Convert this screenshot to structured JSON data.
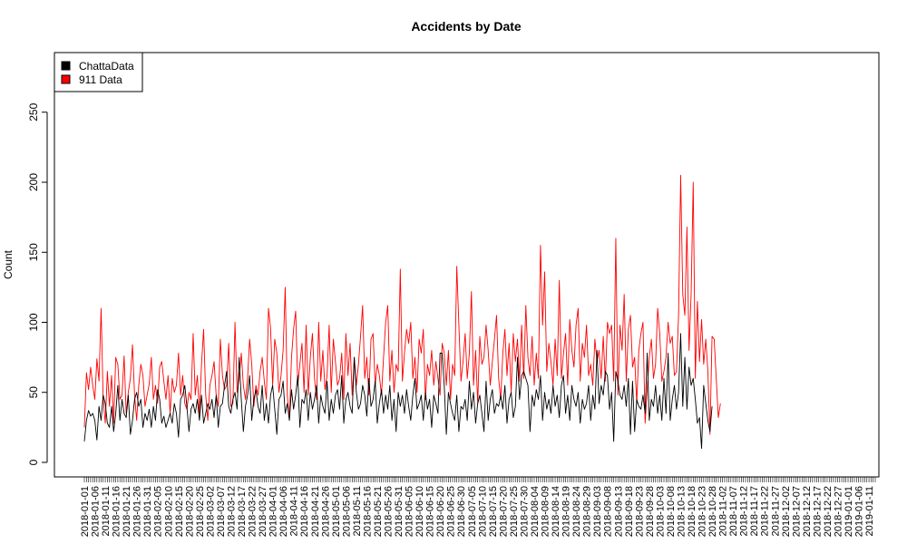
{
  "chart_data": {
    "type": "line",
    "title": "Accidents by Date",
    "xlabel": "",
    "ylabel": "Count",
    "ylim": [
      0,
      290
    ],
    "yticks": [
      0,
      50,
      100,
      150,
      200,
      250
    ],
    "x_start": "2018-01-01",
    "x_end": "2019-01-14",
    "x_label_every_days": 5,
    "x_labels": [
      "2018-01-01",
      "2018-01-06",
      "2018-01-11",
      "2018-01-16",
      "2018-01-21",
      "2018-01-26",
      "2018-01-31",
      "2018-02-05",
      "2018-02-10",
      "2018-02-15",
      "2018-02-20",
      "2018-02-25",
      "2018-03-02",
      "2018-03-07",
      "2018-03-12",
      "2018-03-17",
      "2018-03-22",
      "2018-03-27",
      "2018-04-01",
      "2018-04-06",
      "2018-04-11",
      "2018-04-16",
      "2018-04-21",
      "2018-04-26",
      "2018-05-01",
      "2018-05-06",
      "2018-05-11",
      "2018-05-16",
      "2018-05-21",
      "2018-05-26",
      "2018-05-31",
      "2018-06-05",
      "2018-06-10",
      "2018-06-15",
      "2018-06-20",
      "2018-06-25",
      "2018-06-30",
      "2018-07-05",
      "2018-07-10",
      "2018-07-15",
      "2018-07-20",
      "2018-07-25",
      "2018-07-30",
      "2018-08-04",
      "2018-08-09",
      "2018-08-14",
      "2018-08-19",
      "2018-08-24",
      "2018-08-29",
      "2018-09-03",
      "2018-09-08",
      "2018-09-13",
      "2018-09-18",
      "2018-09-23",
      "2018-09-28",
      "2018-10-03",
      "2018-10-08",
      "2018-10-13",
      "2018-10-18",
      "2018-10-23",
      "2018-10-28",
      "2018-11-02",
      "2018-11-07",
      "2018-11-12",
      "2018-11-17",
      "2018-11-22",
      "2018-11-27",
      "2018-12-02",
      "2018-12-07",
      "2018-12-12",
      "2018-12-17",
      "2018-12-22",
      "2018-12-27",
      "2019-01-01",
      "2019-01-06",
      "2019-01-11"
    ],
    "grid": false,
    "legend": "top-left",
    "series": [
      {
        "name": "ChattaData",
        "color": "#000000",
        "start": "2018-01-01",
        "values": [
          15,
          30,
          37,
          33,
          35,
          30,
          16,
          40,
          30,
          48,
          42,
          28,
          25,
          40,
          22,
          35,
          55,
          30,
          45,
          35,
          32,
          48,
          20,
          30,
          45,
          50,
          40,
          45,
          25,
          35,
          30,
          38,
          25,
          40,
          30,
          52,
          45,
          28,
          33,
          25,
          30,
          35,
          28,
          42,
          35,
          18,
          45,
          48,
          55,
          40,
          22,
          38,
          42,
          35,
          45,
          30,
          48,
          28,
          35,
          42,
          38,
          45,
          32,
          48,
          25,
          40,
          42,
          55,
          65,
          40,
          35,
          45,
          50,
          38,
          75,
          45,
          22,
          40,
          48,
          62,
          30,
          45,
          52,
          40,
          35,
          55,
          30,
          42,
          28,
          48,
          55,
          38,
          20,
          45,
          48,
          58,
          35,
          42,
          30,
          52,
          38,
          48,
          62,
          25,
          45,
          42,
          52,
          30,
          50,
          38,
          45,
          55,
          28,
          48,
          40,
          35,
          58,
          30,
          45,
          35,
          48,
          52,
          38,
          62,
          28,
          45,
          50,
          40,
          35,
          75,
          50,
          38,
          42,
          55,
          48,
          33,
          60,
          40,
          45,
          58,
          28,
          42,
          52,
          35,
          48,
          38,
          55,
          30,
          45,
          22,
          50,
          40,
          48,
          35,
          52,
          40,
          30,
          48,
          60,
          38,
          42,
          48,
          30,
          50,
          38,
          45,
          25,
          48,
          42,
          35,
          78,
          78,
          55,
          20,
          50,
          42,
          35,
          30,
          48,
          22,
          40,
          38,
          45,
          30,
          58,
          38,
          50,
          28,
          42,
          48,
          35,
          22,
          58,
          30,
          45,
          52,
          35,
          42,
          40,
          48,
          38,
          55,
          28,
          45,
          50,
          32,
          40,
          75,
          45,
          62,
          65,
          60,
          55,
          22,
          48,
          40,
          52,
          45,
          62,
          30,
          50,
          38,
          45,
          35,
          55,
          40,
          48,
          32,
          55,
          62,
          35,
          48,
          30,
          55,
          45,
          40,
          50,
          28,
          45,
          38,
          42,
          55,
          30,
          48,
          38,
          80,
          42,
          55,
          48,
          65,
          62,
          38,
          50,
          15,
          65,
          58,
          48,
          45,
          55,
          40,
          60,
          20,
          58,
          22,
          45,
          40,
          38,
          48,
          35,
          78,
          30,
          45,
          40,
          55,
          35,
          48,
          30,
          60,
          35,
          78,
          30,
          45,
          55,
          38,
          50,
          92,
          40,
          75,
          38,
          68,
          55,
          60,
          45,
          28,
          32,
          10,
          55,
          42,
          30,
          22,
          40
        ]
      },
      {
        "name": "911 Data",
        "color": "#ff0000",
        "start": "2018-01-01",
        "values": [
          25,
          64,
          52,
          68,
          55,
          45,
          74,
          58,
          110,
          45,
          28,
          65,
          40,
          62,
          28,
          75,
          70,
          45,
          48,
          76,
          35,
          50,
          60,
          84,
          48,
          30,
          55,
          70,
          62,
          40,
          48,
          56,
          75,
          45,
          55,
          42,
          68,
          72,
          58,
          45,
          62,
          35,
          60,
          50,
          55,
          78,
          48,
          62,
          42,
          38,
          50,
          45,
          92,
          48,
          62,
          35,
          70,
          95,
          48,
          30,
          55,
          62,
          72,
          48,
          40,
          88,
          62,
          52,
          55,
          85,
          40,
          42,
          100,
          50,
          60,
          78,
          55,
          45,
          60,
          88,
          70,
          40,
          55,
          48,
          65,
          75,
          58,
          45,
          110,
          96,
          55,
          88,
          78,
          50,
          62,
          80,
          125,
          48,
          30,
          75,
          95,
          108,
          55,
          70,
          85,
          50,
          98,
          48,
          75,
          92,
          60,
          45,
          100,
          58,
          80,
          52,
          62,
          98,
          50,
          88,
          72,
          55,
          60,
          78,
          45,
          92,
          62,
          85,
          48,
          75,
          55,
          70,
          90,
          112,
          60,
          75,
          48,
          88,
          92,
          55,
          70,
          62,
          48,
          75,
          100,
          112,
          58,
          80,
          50,
          70,
          65,
          138,
          58,
          78,
          95,
          85,
          100,
          60,
          75,
          50,
          88,
          78,
          95,
          45,
          70,
          62,
          80,
          55,
          72,
          60,
          48,
          85,
          78,
          55,
          80,
          45,
          70,
          62,
          140,
          98,
          58,
          72,
          92,
          60,
          78,
          122,
          55,
          80,
          42,
          90,
          70,
          75,
          98,
          80,
          55,
          72,
          88,
          105,
          60,
          45,
          78,
          95,
          62,
          85,
          50,
          92,
          72,
          88,
          58,
          98,
          60,
          112,
          75,
          62,
          90,
          55,
          78,
          60,
          155,
          98,
          136,
          65,
          85,
          72,
          55,
          88,
          62,
          130,
          60,
          78,
          92,
          55,
          102,
          80,
          68,
          98,
          110,
          58,
          85,
          75,
          98,
          62,
          70,
          55,
          88,
          72,
          80,
          60,
          90,
          58,
          100,
          92,
          98,
          58,
          160,
          48,
          98,
          80,
          120,
          58,
          95,
          105,
          68,
          75,
          42,
          80,
          92,
          100,
          28,
          52,
          75,
          88,
          60,
          70,
          110,
          92,
          58,
          65,
          75,
          100,
          85,
          90,
          62,
          65,
          105,
          205,
          120,
          105,
          168,
          80,
          120,
          200,
          60,
          115,
          72,
          102,
          70,
          88,
          65,
          20,
          90,
          88,
          60,
          32,
          42
        ]
      }
    ]
  }
}
